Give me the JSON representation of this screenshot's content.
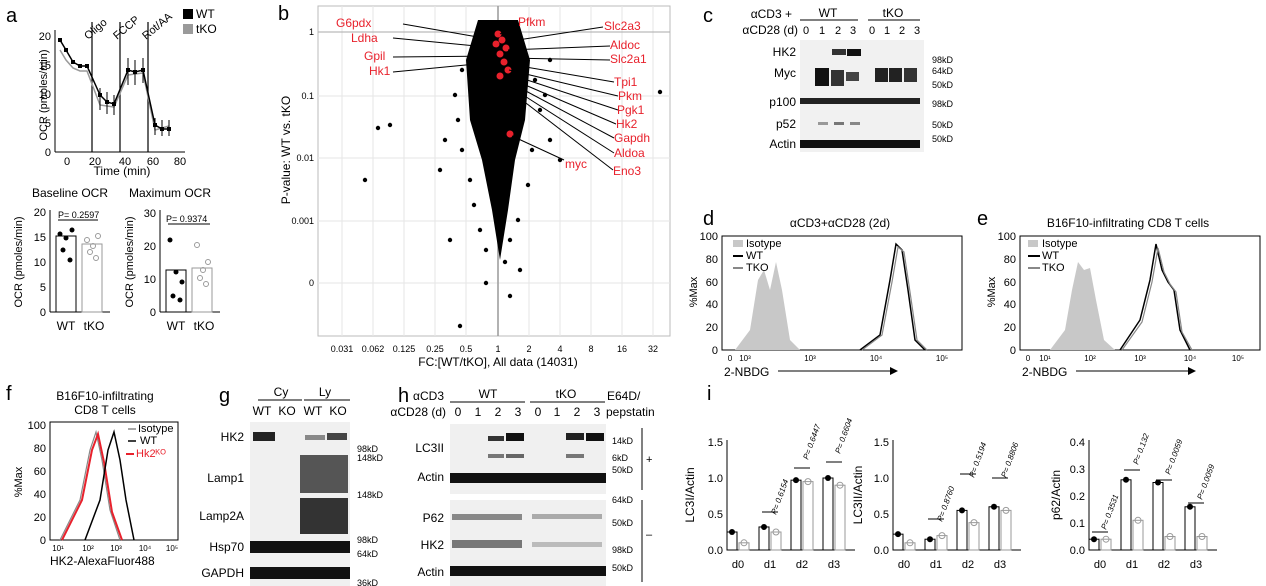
{
  "panels": {
    "a": "a",
    "b": "b",
    "c": "c",
    "d": "d",
    "e": "e",
    "f": "f",
    "g": "g",
    "h": "h",
    "i": "i"
  },
  "a": {
    "legend": [
      "WT",
      "tKO"
    ],
    "injections": [
      "Oligo",
      "FCCP",
      "Rot/AA"
    ],
    "ylabel": "OCR (pmoles/min)",
    "xlabel": "Time (min)",
    "yticks": [
      "0",
      "5",
      "10",
      "15",
      "20"
    ],
    "xticks": [
      "0",
      "20",
      "40",
      "60",
      "80"
    ],
    "baseline_title": "Baseline OCR",
    "maximum_title": "Maximum OCR",
    "baseline_p": "P= 0.2597",
    "maximum_p": "P= 0.9374",
    "baseline_yticks": [
      "0",
      "5",
      "10",
      "15",
      "20"
    ],
    "maximum_yticks": [
      "0",
      "10",
      "20",
      "30"
    ],
    "group_labels": [
      "WT",
      "tKO"
    ]
  },
  "b": {
    "ylabel": "P-value: WT vs. tKO",
    "xlabel": "FC:[WT/tKO], All data (14031)",
    "yticks": [
      "1",
      "0.1",
      "0.01",
      "0.001",
      "0"
    ],
    "xticks": [
      "0.031",
      "0.062",
      "0.125",
      "0.25",
      "0.5",
      "1",
      "2",
      "4",
      "8",
      "16",
      "32"
    ],
    "genes_left": [
      "G6pdx",
      "Ldha",
      "Gpil",
      "Hk1"
    ],
    "genes_right": [
      "Pfkm",
      "Slc2a3",
      "Aldoc",
      "Slc2a1",
      "Tpi1",
      "Pkm",
      "Pgk1",
      "Hk2",
      "Gapdh",
      "Aldoa",
      "Eno3",
      "myc"
    ]
  },
  "c": {
    "treat1": "αCD3 +",
    "treat2": "αCD28 (d)",
    "wt": "WT",
    "tko": "tKO",
    "days": [
      "0",
      "1",
      "2",
      "3",
      "0",
      "1",
      "2",
      "3"
    ],
    "rows": [
      "HK2",
      "Myc",
      "p100",
      "p52",
      "Actin"
    ],
    "markers": [
      "98kD",
      "64kD",
      "50kD",
      "98kD",
      "50kD",
      "50kD"
    ]
  },
  "d": {
    "title": "αCD3+αCD28 (2d)",
    "legend": [
      "Isotype",
      "WT",
      "TKO"
    ],
    "ylabel": "%Max",
    "xlabel": "2-NBDG",
    "yticks": [
      "0",
      "20",
      "40",
      "60",
      "80",
      "100"
    ],
    "xticks": [
      "0",
      "10³",
      "10³",
      "10⁴",
      "10⁵"
    ]
  },
  "e": {
    "title": "B16F10-infiltrating CD8 T cells",
    "legend": [
      "Isotype",
      "WT",
      "TKO"
    ],
    "ylabel": "%Max",
    "xlabel": "2-NBDG",
    "yticks": [
      "0",
      "20",
      "40",
      "60",
      "80",
      "100"
    ],
    "xticks": [
      "0",
      "10¹",
      "10²",
      "10³",
      "10⁴",
      "10⁵"
    ]
  },
  "f": {
    "title1": "B16F10-infiltrating",
    "title2": "CD8 T cells",
    "legend": [
      "Isotype",
      "WT",
      "Hk2ᴷᴼ"
    ],
    "ylabel": "%Max",
    "xlabel": "HK2-AlexaFluor488",
    "yticks": [
      "0",
      "20",
      "40",
      "60",
      "80",
      "100"
    ],
    "xticks": [
      "10¹",
      "10²",
      "10³",
      "10⁴",
      "10⁵"
    ]
  },
  "g": {
    "groups": [
      "Cy",
      "Ly"
    ],
    "lanes": [
      "WT",
      "KO",
      "WT",
      "KO"
    ],
    "rows": [
      "HK2",
      "Lamp1",
      "Lamp2A",
      "Hsp70",
      "GAPDH"
    ],
    "markers": [
      "98kD",
      "148kD",
      "148kD",
      "98kD",
      "64kD",
      "36kD"
    ]
  },
  "h": {
    "treat1": "αCD3",
    "treat2": "αCD28 (d)",
    "wt": "WT",
    "tko": "tKO",
    "inhib1": "E64D/",
    "inhib2": "pepstatin",
    "days": [
      "0",
      "1",
      "2",
      "3",
      "0",
      "1",
      "2",
      "3"
    ],
    "rows": [
      "LC3II",
      "Actin",
      "P62",
      "HK2",
      "Actin"
    ],
    "markers": [
      "14kD",
      "6kD",
      "50kD",
      "64kD",
      "50kD",
      "98kD",
      "50kD"
    ],
    "plus": "+",
    "minus": "–"
  },
  "i": {
    "ylabels": [
      "LC3I/Actin",
      "LC3II/Actin",
      "p62/Actin"
    ],
    "days": [
      "d0",
      "d1",
      "d2",
      "d3"
    ],
    "p1": [
      "P= 0.6154",
      "P= 0.6447",
      "P= 0.6604"
    ],
    "p2": [
      "P= 0.8760",
      "P= 0.5194",
      "P= 0.8806"
    ],
    "p3": [
      "P= 0.3531",
      "P= 0.132",
      "P= 0.0059",
      "P= 0.0059"
    ],
    "yticks1": [
      "0.0",
      "0.5",
      "1.0",
      "1.5"
    ],
    "yticks2": [
      "0.0",
      "0.5",
      "1.0",
      "1.5"
    ],
    "yticks3": [
      "0.0",
      "0.1",
      "0.2",
      "0.3",
      "0.4"
    ],
    "values1_wt": [
      0.25,
      0.32,
      0.97,
      1.0
    ],
    "values1_tko": [
      0.1,
      0.25,
      0.95,
      0.9
    ],
    "values2_wt": [
      0.22,
      0.15,
      0.55,
      0.6
    ],
    "values2_tko": [
      0.1,
      0.2,
      0.38,
      0.55
    ],
    "values3_wt": [
      0.04,
      0.26,
      0.25,
      0.16
    ],
    "values3_tko": [
      0.04,
      0.11,
      0.05,
      0.05
    ]
  },
  "colors": {
    "red": "#e8212c",
    "wt_bar": "#000000",
    "tko_bar": "#9a9a9a",
    "isotype": "#c8c8c8"
  }
}
